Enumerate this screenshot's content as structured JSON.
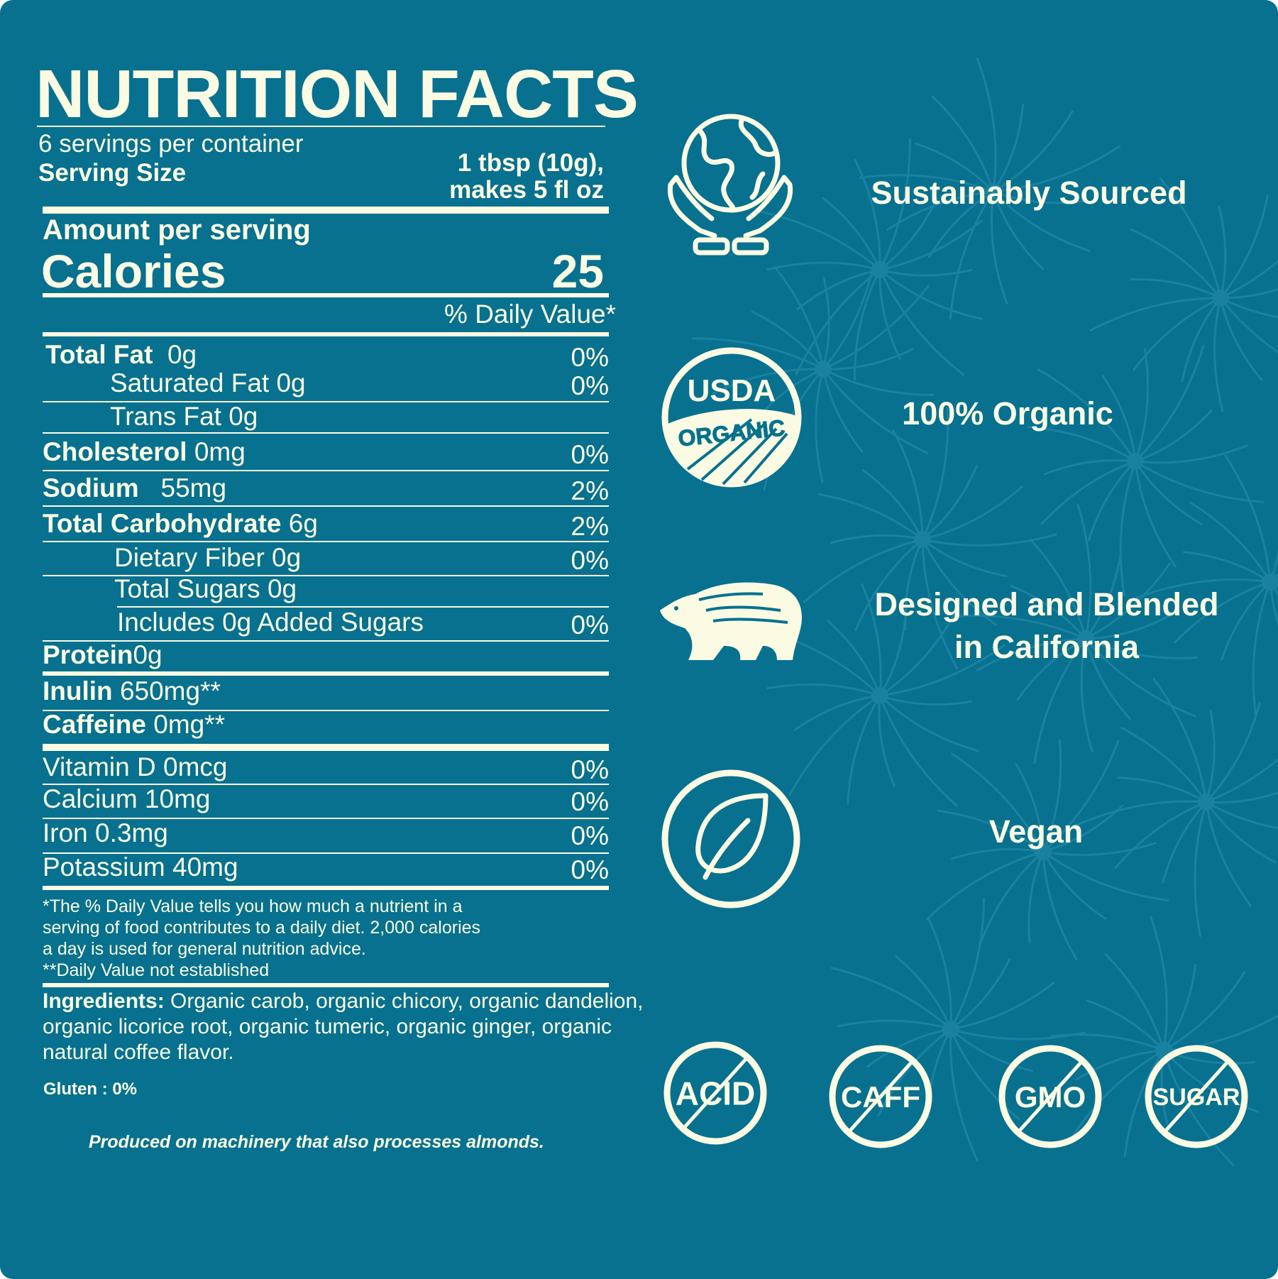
{
  "colors": {
    "background": "#07718f",
    "foreground": "#fbfbe3",
    "pattern": "#1a82a0"
  },
  "label": {
    "title": "NUTRITION FACTS",
    "servings_per_container": "6 servings per container",
    "serving_size_label": "Serving Size",
    "serving_size_line1": "1 tbsp (10g),",
    "serving_size_line2": "makes 5 fl oz",
    "amount_per_serving": "Amount per serving",
    "calories_label": "Calories",
    "calories_value": "25",
    "daily_value_header": "% Daily Value*",
    "rows": [
      {
        "name": "Total Fat",
        "amount": "0g",
        "dv": "0%"
      },
      {
        "name": "Saturated Fat 0g",
        "amount": "",
        "dv": "0%"
      },
      {
        "name": "Trans Fat 0g",
        "amount": "",
        "dv": ""
      },
      {
        "name": "Cholesterol",
        "amount": "0mg",
        "dv": "0%"
      },
      {
        "name": "Sodium",
        "amount": "55mg",
        "dv": "2%"
      },
      {
        "name": "Total Carbohydrate",
        "amount": "6g",
        "dv": "2%"
      },
      {
        "name": "Dietary Fiber 0g",
        "amount": "",
        "dv": "0%"
      },
      {
        "name": "Total Sugars 0g",
        "amount": "",
        "dv": ""
      },
      {
        "name": "Includes 0g Added Sugars",
        "amount": "",
        "dv": "0%"
      },
      {
        "name": "Protein",
        "amount": "0g",
        "dv": ""
      },
      {
        "name": "Inulin",
        "amount": "650mg**",
        "dv": ""
      },
      {
        "name": "Caffeine",
        "amount": "0mg**",
        "dv": ""
      },
      {
        "name": "Vitamin D 0mcg",
        "amount": "",
        "dv": "0%"
      },
      {
        "name": "Calcium 10mg",
        "amount": "",
        "dv": "0%"
      },
      {
        "name": "Iron 0.3mg",
        "amount": "",
        "dv": "0%"
      },
      {
        "name": "Potassium 40mg",
        "amount": "",
        "dv": "0%"
      }
    ],
    "footnote": [
      "*The % Daily Value tells you how much a nutrient in a",
      "serving of food contributes to a daily diet. 2,000 calories",
      "a day is used for general nutrition advice.",
      "**Daily Value not established"
    ],
    "ingredients_label": "Ingredients:",
    "ingredients_lines": [
      " Organic carob, organic chicory, organic dandelion,",
      "organic licorice root, organic tumeric, organic ginger, organic",
      "natural coffee flavor."
    ],
    "gluten": "Gluten : 0%",
    "allergen": "Produced on machinery that also processes almonds."
  },
  "claims": [
    {
      "icon": "globe-in-hands-icon",
      "text": "Sustainably Sourced"
    },
    {
      "icon": "usda-organic-seal-icon",
      "text": "100% Organic",
      "seal_top": "USDA",
      "seal_bottom": "ORGANIC"
    },
    {
      "icon": "bear-icon",
      "text_line1": "Designed and Blended",
      "text_line2": "in California"
    },
    {
      "icon": "leaf-circle-icon",
      "text": "Vegan"
    }
  ],
  "free_badges": [
    "ACID",
    "CAFF",
    "GMO",
    "SUGAR"
  ]
}
